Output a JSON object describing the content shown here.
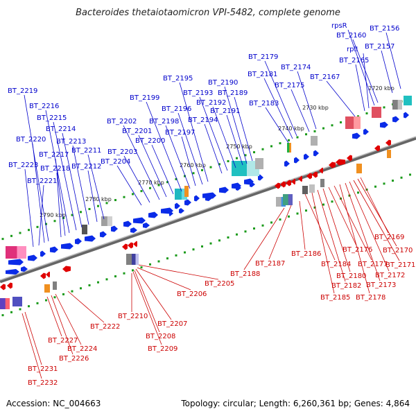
{
  "title": "Bacteroides thetaiotaomicron VPI-5482, complete genome",
  "accession": "Accession: NC_004663",
  "summary": "Topology: circular; Length: 6,260,361 bp; Genes: 4,864",
  "colors": {
    "forward_gene": "#0a2be8",
    "reverse_gene": "#e00000",
    "forward_label": "#0000cc",
    "reverse_label": "#cc0000",
    "backbone": "#888888",
    "tick": "#1a9a1a"
  },
  "scale_labels": [
    "2720 kbp",
    "2730 kbp",
    "2740 kbp",
    "2750 kbp",
    "2760 kbp",
    "2770 kbp",
    "2780 kbp",
    "2790 kbp"
  ],
  "forward_genes": [
    "BT_2156",
    "BT_2157",
    "BT_2160",
    "rpsR",
    "rplI",
    "BT_2165",
    "BT_2167",
    "BT_2174",
    "BT_2175",
    "BT_2179",
    "BT_2181",
    "BT_2183",
    "BT_2189",
    "BT_2190",
    "BT_2191",
    "BT_2192",
    "BT_2193",
    "BT_2194",
    "BT_2195",
    "BT_2196",
    "BT_2197",
    "BT_2198",
    "BT_2199",
    "BT_2200",
    "BT_2201",
    "BT_2202",
    "BT_2203",
    "BT_2204",
    "BT_2211",
    "BT_2212",
    "BT_2213",
    "BT_2214",
    "BT_2215",
    "BT_2216",
    "BT_2217",
    "BT_2218",
    "BT_2219",
    "BT_2220",
    "BT_2221",
    "BT_2223"
  ],
  "reverse_genes": [
    "BT_2169",
    "BT_2170",
    "BT_2171",
    "BT_2172",
    "BT_2173",
    "BT_2176",
    "BT_2177",
    "BT_2178",
    "BT_2180",
    "BT_2182",
    "BT_2184",
    "BT_2185",
    "BT_2186",
    "BT_2187",
    "BT_2188",
    "BT_2205",
    "BT_2206",
    "BT_2207",
    "BT_2208",
    "BT_2209",
    "BT_2210",
    "BT_2222",
    "BT_2224",
    "BT_2226",
    "BT_2227",
    "BT_2231",
    "BT_2232"
  ]
}
